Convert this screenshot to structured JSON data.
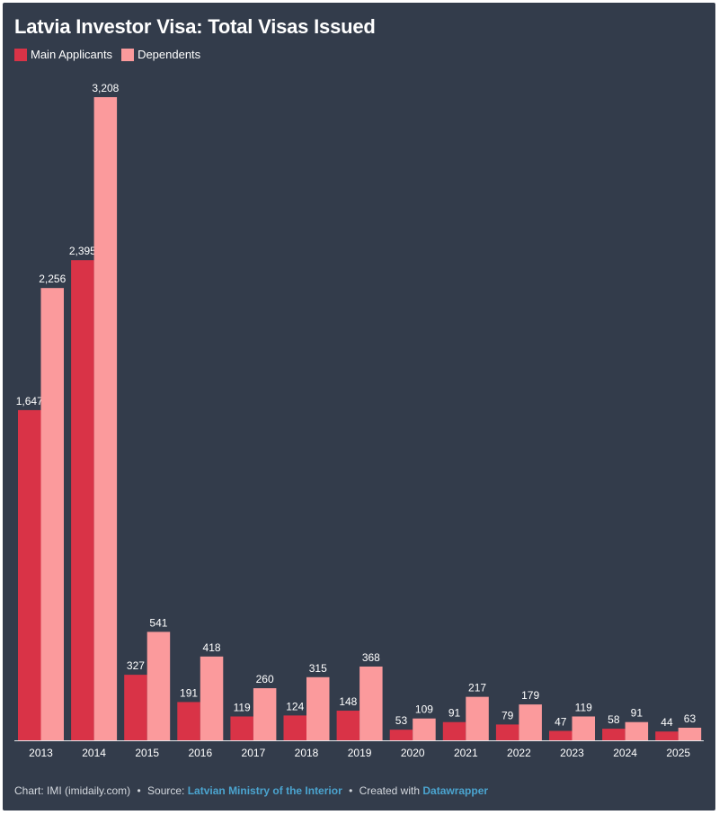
{
  "chart_data": {
    "type": "bar",
    "title": "Latvia Investor Visa: Total Visas Issued",
    "categories": [
      "2013",
      "2014",
      "2015",
      "2016",
      "2017",
      "2018",
      "2019",
      "2020",
      "2021",
      "2022",
      "2023",
      "2024",
      "2025"
    ],
    "series": [
      {
        "name": "Main Applicants",
        "color": "#d93347",
        "values": [
          1647,
          2395,
          327,
          191,
          119,
          124,
          148,
          53,
          91,
          79,
          47,
          58,
          44
        ],
        "labels": [
          "1,647",
          "2,395",
          "327",
          "191",
          "119",
          "124",
          "148",
          "53",
          "91",
          "79",
          "47",
          "58",
          "44"
        ]
      },
      {
        "name": "Dependents",
        "color": "#fb9a9c",
        "values": [
          2256,
          3208,
          541,
          418,
          260,
          315,
          368,
          109,
          217,
          179,
          119,
          91,
          63
        ],
        "labels": [
          "2,256",
          "3,208",
          "541",
          "418",
          "260",
          "315",
          "368",
          "109",
          "217",
          "179",
          "119",
          "91",
          "63"
        ]
      }
    ],
    "xlabel": "",
    "ylabel": "",
    "grid": false,
    "legend_position": "top-left"
  },
  "footer": {
    "credit": "Chart: IMI (imidaily.com)",
    "source_prefix": "Source:",
    "source_link": "Latvian Ministry of the Interior",
    "created_prefix": "Created with",
    "created_link": "Datawrapper",
    "separator": "•"
  }
}
